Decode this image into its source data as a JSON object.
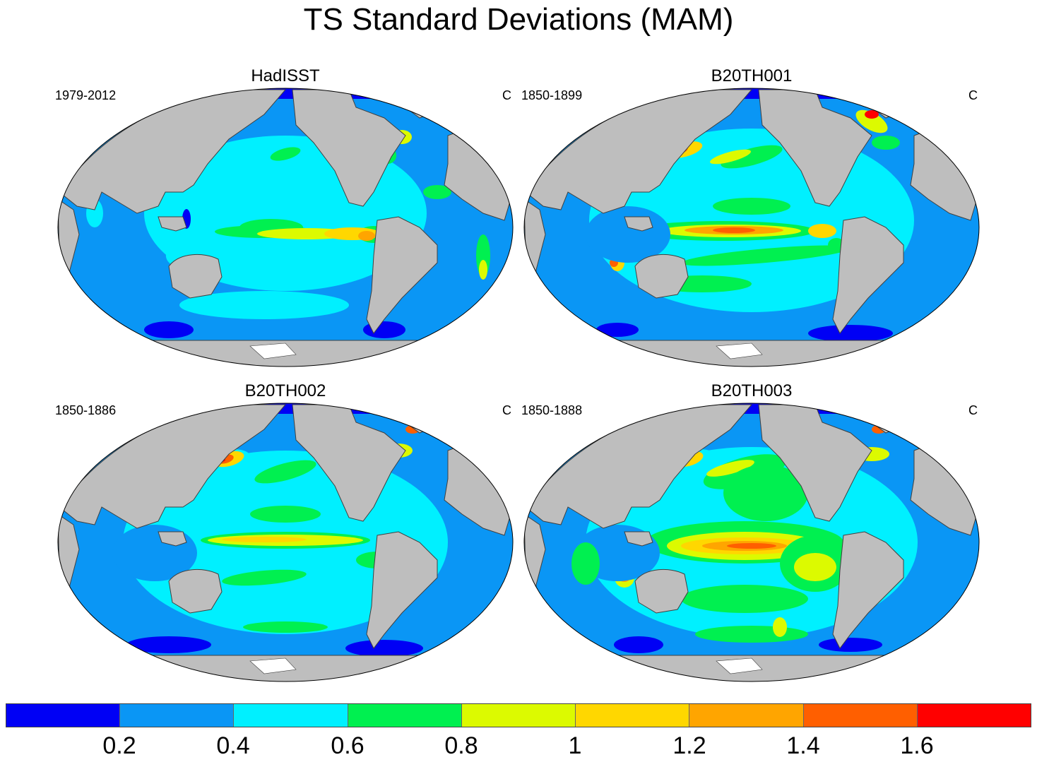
{
  "title": "TS Standard Deviations (MAM)",
  "units": "C",
  "panels": [
    {
      "name": "HadISST",
      "period": "1979-2012",
      "units": "C"
    },
    {
      "name": "B20TH001",
      "period": "1850-1899",
      "units": "C"
    },
    {
      "name": "B20TH002",
      "period": "1850-1886",
      "units": "C"
    },
    {
      "name": "B20TH003",
      "period": "1850-1888",
      "units": "C"
    }
  ],
  "colorbar": {
    "ticks": [
      "0.2",
      "0.4",
      "0.6",
      "0.8",
      "1",
      "1.2",
      "1.4",
      "1.6"
    ],
    "colors": [
      "#0000f5",
      "#0a96f5",
      "#00f0ff",
      "#00f050",
      "#dcfa00",
      "#ffd700",
      "#ffa500",
      "#ff5f00",
      "#ff0000"
    ]
  },
  "colors": {
    "land": "#bebebe",
    "ocean_base": "#0a96f5",
    "sea_ice": "#ffffff"
  }
}
